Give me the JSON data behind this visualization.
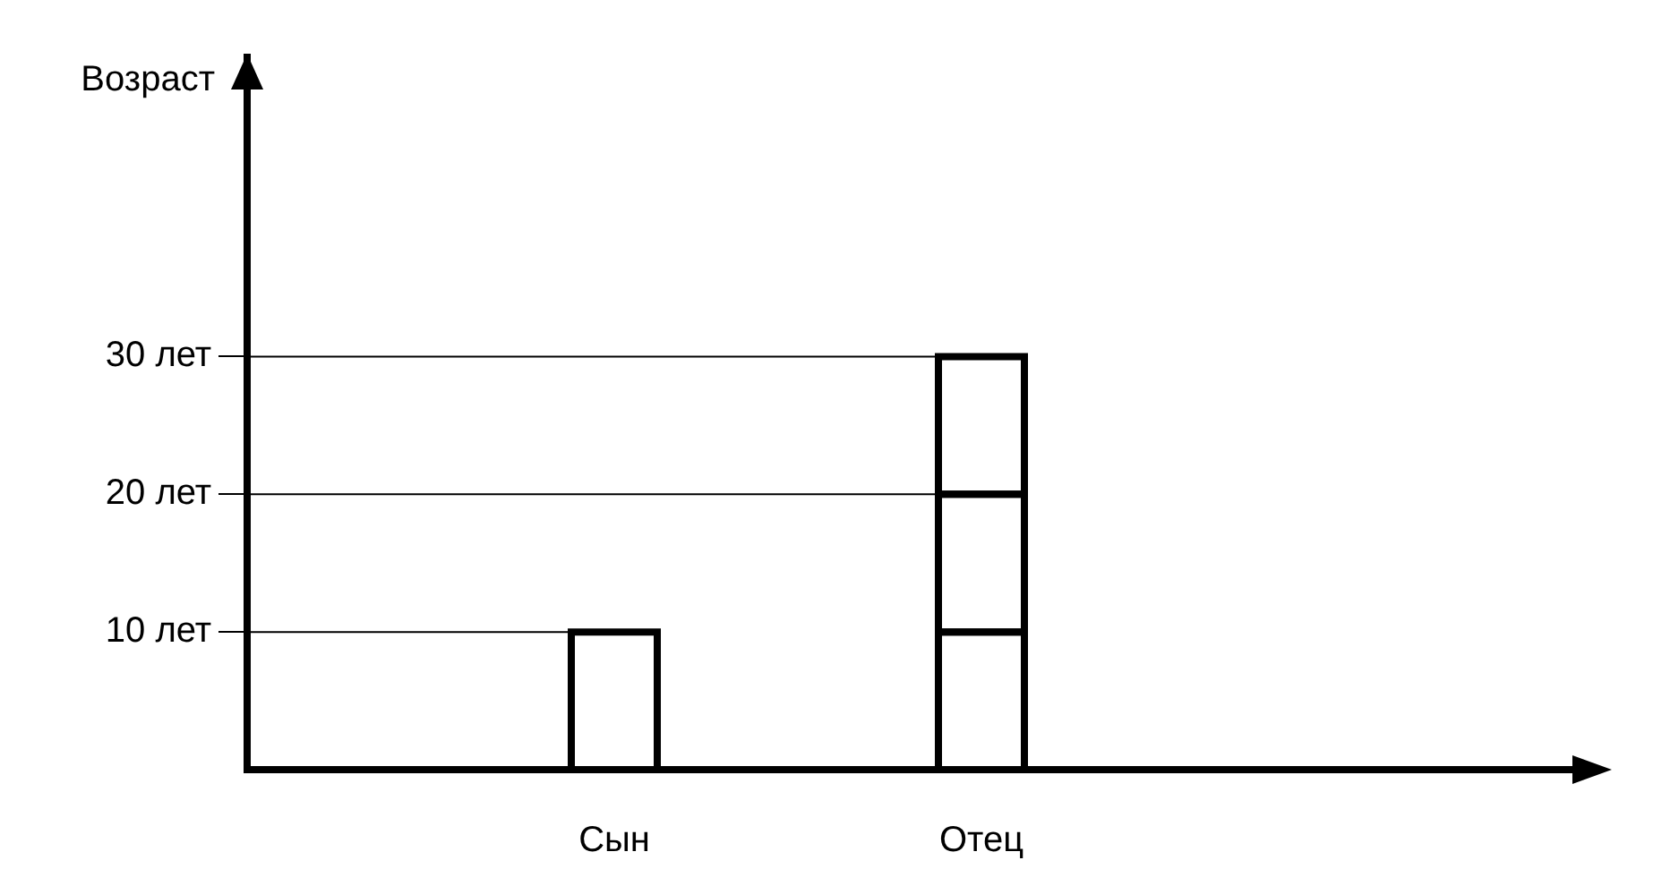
{
  "chart_data": {
    "type": "bar",
    "ylabel": "Возраст",
    "categories": [
      null,
      "Сын",
      "Отец",
      null
    ],
    "stacked": true,
    "series": [
      {
        "color": "#000000",
        "values": [
          null,
          10,
          10,
          null
        ]
      },
      {
        "color": "#000000",
        "values": [
          null,
          null,
          10,
          null
        ]
      },
      {
        "color": "#000000",
        "values": [
          null,
          null,
          10,
          null
        ]
      }
    ],
    "ylim": [
      0,
      52
    ],
    "yticks": [
      {
        "value": 10,
        "label": "10 лет"
      },
      {
        "value": 20,
        "label": "20 лет"
      },
      {
        "value": 30,
        "label": "30 лет"
      }
    ],
    "ref_lines": [
      {
        "axis": "y",
        "value": 10
      },
      {
        "axis": "y",
        "value": 20
      },
      {
        "axis": "y",
        "value": 30
      }
    ]
  }
}
